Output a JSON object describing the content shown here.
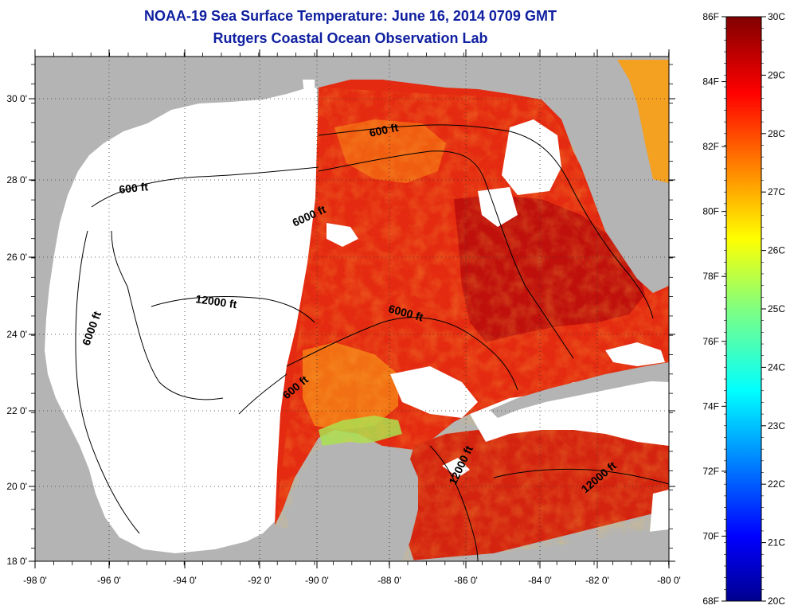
{
  "title": {
    "line1": "NOAA-19 Sea Surface Temperature:  June 16, 2014 0709 GMT",
    "line2": "Rutgers Coastal Ocean Observation Lab"
  },
  "axes": {
    "x_ticks": [
      "-98 0'",
      "-96 0'",
      "-94 0'",
      "-92 0'",
      "-90 0'",
      "-88 0'",
      "-86 0'",
      "-84 0'",
      "-82 0'",
      "-80 0'"
    ],
    "y_ticks": [
      "30 0'",
      "28 0'",
      "26 0'",
      "24 0'",
      "22 0'",
      "20 0'",
      "18 0'"
    ]
  },
  "contour_labels": [
    "600 ft",
    "6000 ft",
    "6000 ft",
    "12000 ft",
    "600 ft",
    "6000 ft",
    "600 ft",
    "12000 ft",
    "12000 ft"
  ],
  "colorbar": {
    "fahrenheit": [
      "86F",
      "84F",
      "82F",
      "80F",
      "78F",
      "76F",
      "74F",
      "72F",
      "70F",
      "68F"
    ],
    "celsius": [
      "30C",
      "29C",
      "28C",
      "27C",
      "26C",
      "25C",
      "24C",
      "23C",
      "22C",
      "21C",
      "20C"
    ]
  },
  "colors": {
    "land": "#b4b4b4",
    "no_data": "#ffffff",
    "title": "#1020a0",
    "warm": "#e42a10",
    "hot": "#b80c0c",
    "mid": "#f36a12"
  }
}
